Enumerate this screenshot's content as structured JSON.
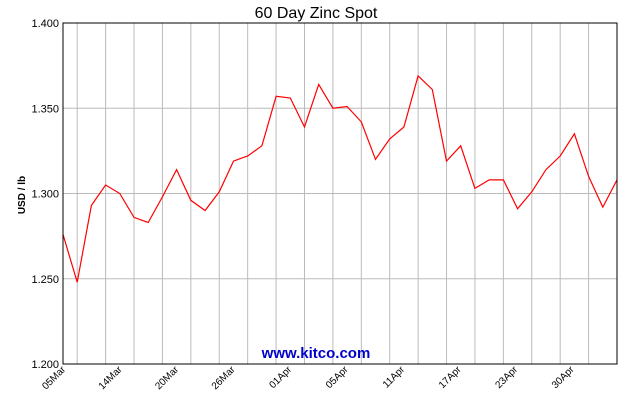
{
  "chart_data": {
    "type": "line",
    "title": "60 Day Zinc Spot",
    "xlabel": "",
    "ylabel": "USD / lb",
    "ylim": [
      1.2,
      1.4
    ],
    "y_ticks": [
      "1.400",
      "1.350",
      "1.300",
      "1.250",
      "1.200"
    ],
    "x_tick_labels": [
      "05Mar",
      "14Mar",
      "20Mar",
      "26Mar",
      "01Apr",
      "05Apr",
      "11Apr",
      "17Apr",
      "23Apr",
      "30Apr"
    ],
    "grid": true,
    "line_color": "#ff0000",
    "watermark": "www.kitco.com",
    "series": [
      {
        "values": [
          1.276,
          1.248,
          1.293,
          1.305,
          1.3,
          1.286,
          1.283,
          1.298,
          1.314,
          1.296,
          1.29,
          1.301,
          1.319,
          1.322,
          1.328,
          1.357,
          1.356,
          1.339,
          1.364,
          1.35,
          1.351,
          1.342,
          1.32,
          1.332,
          1.339,
          1.369,
          1.361,
          1.319,
          1.328,
          1.303,
          1.308,
          1.308,
          1.291,
          1.301,
          1.314,
          1.322,
          1.335,
          1.31,
          1.292,
          1.308
        ]
      }
    ]
  }
}
